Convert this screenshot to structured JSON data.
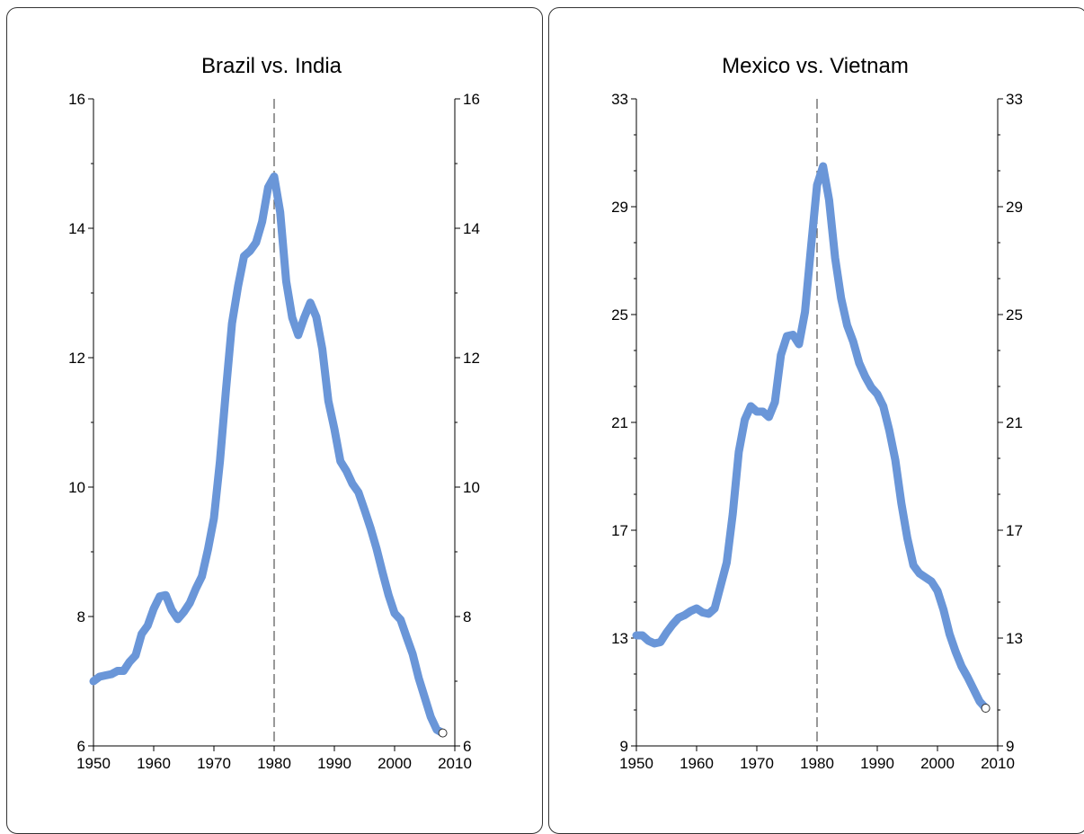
{
  "colors": {
    "line": "#6a96d8",
    "axis": "#000000",
    "marker_line": "#555555"
  },
  "chart_data": [
    {
      "type": "line",
      "title": "Brazil vs. India",
      "xlim": [
        1950,
        2010
      ],
      "ylim": [
        6,
        16
      ],
      "x_ticks": [
        "1950",
        "1960",
        "1970",
        "1980",
        "1990",
        "2000",
        "2010"
      ],
      "y_ticks": [
        "6",
        "8",
        "10",
        "12",
        "14",
        "16"
      ],
      "vline_x": 1980,
      "series": [
        {
          "x": [
            1950,
            1951,
            1952,
            1953,
            1954,
            1955,
            1956,
            1957,
            1958,
            1959,
            1960,
            1961,
            1962,
            1963,
            1964,
            1965,
            1966,
            1967,
            1968,
            1969,
            1970,
            1971,
            1972,
            1973,
            1974,
            1975,
            1976,
            1977,
            1978,
            1979,
            1980,
            1981,
            1982,
            1983,
            1984,
            1985,
            1986,
            1987,
            1988,
            1989,
            1990,
            1991,
            1992,
            1993,
            1994,
            1995,
            1996,
            1997,
            1998,
            1999,
            2000,
            2001,
            2002,
            2003,
            2004,
            2005,
            2006,
            2007,
            2008
          ],
          "y": [
            7.0,
            7.07,
            7.09,
            7.11,
            7.16,
            7.16,
            7.3,
            7.4,
            7.73,
            7.86,
            8.12,
            8.31,
            8.33,
            8.1,
            7.96,
            8.07,
            8.21,
            8.43,
            8.62,
            9.03,
            9.52,
            10.4,
            11.5,
            12.53,
            13.1,
            13.57,
            13.65,
            13.78,
            14.1,
            14.63,
            14.8,
            14.25,
            13.18,
            12.62,
            12.35,
            12.62,
            12.85,
            12.63,
            12.13,
            11.33,
            10.9,
            10.4,
            10.25,
            10.05,
            9.92,
            9.65,
            9.37,
            9.05,
            8.68,
            8.33,
            8.05,
            7.95,
            7.68,
            7.42,
            7.05,
            6.75,
            6.45,
            6.25,
            6.2
          ]
        }
      ],
      "end_marker": {
        "x": 2008,
        "y": 6.2
      }
    },
    {
      "type": "line",
      "title": "Mexico vs. Vietnam",
      "xlim": [
        1950,
        2010
      ],
      "ylim": [
        9,
        33
      ],
      "x_ticks": [
        "1950",
        "1960",
        "1970",
        "1980",
        "1990",
        "2000",
        "2010"
      ],
      "y_ticks": [
        "9",
        "13",
        "17",
        "21",
        "25",
        "29",
        "33"
      ],
      "vline_x": 1980,
      "series": [
        {
          "x": [
            1950,
            1951,
            1952,
            1953,
            1954,
            1955,
            1956,
            1957,
            1958,
            1959,
            1960,
            1961,
            1962,
            1963,
            1964,
            1965,
            1966,
            1967,
            1968,
            1969,
            1970,
            1971,
            1972,
            1973,
            1974,
            1975,
            1976,
            1977,
            1978,
            1979,
            1980,
            1981,
            1982,
            1983,
            1984,
            1985,
            1986,
            1987,
            1988,
            1989,
            1990,
            1991,
            1992,
            1993,
            1994,
            1995,
            1996,
            1997,
            1998,
            1999,
            2000,
            2001,
            2002,
            2003,
            2004,
            2005,
            2006,
            2007,
            2008
          ],
          "y": [
            13.1,
            13.1,
            12.9,
            12.8,
            12.85,
            13.2,
            13.5,
            13.75,
            13.85,
            14.0,
            14.1,
            13.95,
            13.9,
            14.1,
            14.95,
            15.8,
            17.6,
            19.9,
            21.1,
            21.6,
            21.4,
            21.4,
            21.2,
            21.75,
            23.5,
            24.2,
            24.25,
            23.9,
            25.1,
            27.5,
            29.8,
            30.5,
            29.25,
            27.1,
            25.6,
            24.6,
            24.0,
            23.2,
            22.7,
            22.3,
            22.05,
            21.6,
            20.7,
            19.6,
            18.0,
            16.7,
            15.7,
            15.4,
            15.25,
            15.1,
            14.75,
            14.05,
            13.15,
            12.5,
            11.95,
            11.55,
            11.1,
            10.65,
            10.4
          ]
        }
      ],
      "end_marker": {
        "x": 2008,
        "y": 10.4
      }
    }
  ]
}
